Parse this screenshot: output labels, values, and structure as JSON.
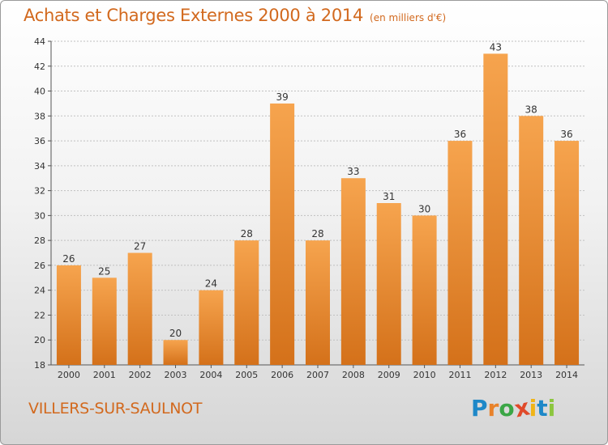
{
  "chart_data": {
    "type": "bar",
    "title": "Achats et Charges Externes 2000 à 2014",
    "unit": "(en milliers d'€)",
    "categories": [
      "2000",
      "2001",
      "2002",
      "2003",
      "2004",
      "2005",
      "2006",
      "2007",
      "2008",
      "2009",
      "2010",
      "2011",
      "2012",
      "2013",
      "2014"
    ],
    "values": [
      26,
      25,
      27,
      20,
      24,
      28,
      39,
      28,
      33,
      31,
      30,
      36,
      43,
      38,
      36
    ],
    "ylim": [
      18,
      44
    ],
    "yticks": [
      18,
      20,
      22,
      24,
      26,
      28,
      30,
      32,
      34,
      36,
      38,
      40,
      42,
      44
    ],
    "grid": true,
    "bar_color_top": "#f6a44e",
    "bar_color_bottom": "#d4711a"
  },
  "commune": "VILLERS-SUR-SAULNOT",
  "logo": {
    "letters": [
      "P",
      "r",
      "o",
      "x",
      "i",
      "t",
      "i"
    ],
    "colors": [
      "#1e88c8",
      "#e8822a",
      "#3ba646",
      "#e04a2a",
      "#f0b418",
      "#1e88c8",
      "#8cc63f"
    ]
  },
  "colors": {
    "accent": "#d2691e",
    "grid": "#c0c0c0"
  }
}
